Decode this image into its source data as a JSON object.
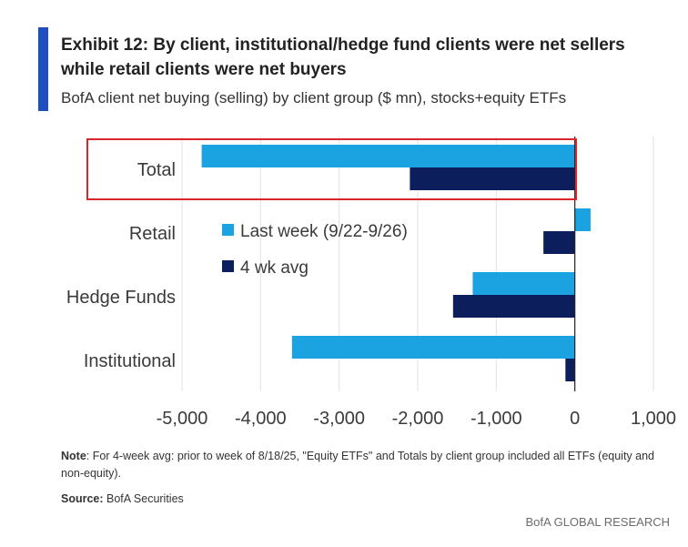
{
  "title_line1": "Exhibit 12: By client, institutional/hedge fund clients were net sellers",
  "title_line2": "while retail clients were net buyers",
  "subtitle": "BofA client net buying (selling) by client group ($ mn), stocks+equity ETFs",
  "note_label": "Note",
  "note_text": ": For 4-week avg: prior to week of 8/18/25, \"Equity ETFs\" and Totals by client group included all ETFs (equity and non-equity).",
  "source_label": "Source:",
  "source_text": " BofA Securities",
  "footer": "BofA GLOBAL RESEARCH",
  "colors": {
    "accent": "#1f4fbf",
    "last_week": "#1aa3e0",
    "four_wk": "#0c1f5c",
    "highlight": "#d9252b"
  },
  "chart_data": {
    "type": "bar",
    "orientation": "horizontal",
    "categories": [
      "Total",
      "Retail",
      "Hedge Funds",
      "Institutional"
    ],
    "series": [
      {
        "name": "Last week (9/22-9/26)",
        "values": [
          -4750,
          200,
          -1300,
          -3600
        ],
        "color": "#1aa3e0"
      },
      {
        "name": "4 wk avg",
        "values": [
          -2100,
          -400,
          -1550,
          -120
        ],
        "color": "#0c1f5c"
      }
    ],
    "xlim": [
      -5000,
      1000
    ],
    "xticks": [
      -5000,
      -4000,
      -3000,
      -2000,
      -1000,
      0,
      1000
    ],
    "xtick_labels": [
      "-5,000",
      "-4,000",
      "-3,000",
      "-2,000",
      "-1,000",
      "0",
      "1,000"
    ],
    "grid": true,
    "highlighted_category": "Total"
  }
}
